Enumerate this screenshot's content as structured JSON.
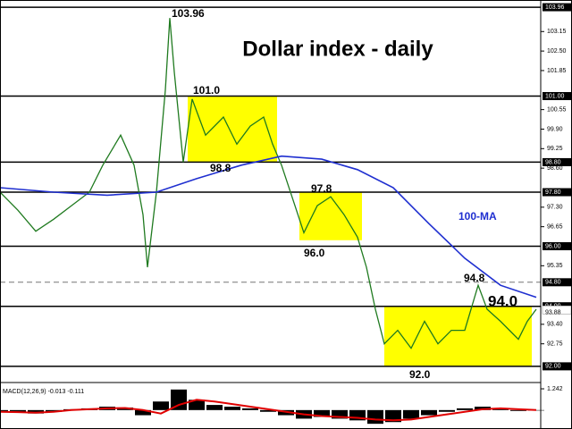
{
  "chart_data": [
    {
      "type": "line",
      "title": "Dollar index - daily",
      "xlim": [
        0,
        121
      ],
      "ylim": [
        91.55,
        104.2
      ],
      "yticks": [
        {
          "value": 103.15,
          "label": "103.15"
        },
        {
          "value": 102.5,
          "label": "102.50"
        },
        {
          "value": 101.85,
          "label": "101.85"
        },
        {
          "value": 100.55,
          "label": "100.55"
        },
        {
          "value": 99.9,
          "label": "99.90"
        },
        {
          "value": 99.25,
          "label": "99.25"
        },
        {
          "value": 98.6,
          "label": "98.60"
        },
        {
          "value": 97.3,
          "label": "97.30"
        },
        {
          "value": 96.65,
          "label": "96.65"
        },
        {
          "value": 95.35,
          "label": "95.35"
        },
        {
          "value": 93.4,
          "label": "93.40"
        },
        {
          "value": 92.75,
          "label": "92.75"
        }
      ],
      "levels": [
        {
          "value": 103.96,
          "label": "103.96"
        },
        {
          "value": 101.0,
          "label": "101.00"
        },
        {
          "value": 98.8,
          "label": "98.80"
        },
        {
          "value": 97.8,
          "label": "97.80"
        },
        {
          "value": 96.0,
          "label": "96.00"
        },
        {
          "value": 94.8,
          "label": "94.80",
          "dashed": true
        },
        {
          "value": 94.0,
          "label": "94.00"
        },
        {
          "value": 92.0,
          "label": "92.00"
        }
      ],
      "last_price": {
        "value": 93.88,
        "label": "93.88"
      },
      "zones": [
        {
          "x": [
            42,
            62
          ],
          "y": [
            98.8,
            101.0
          ]
        },
        {
          "x": [
            67,
            81
          ],
          "y": [
            96.2,
            97.8
          ]
        },
        {
          "x": [
            86,
            119
          ],
          "y": [
            92.0,
            94.0
          ]
        }
      ],
      "zone_color": "#ffff00",
      "series": [
        {
          "color": "#1f7a1f",
          "x": [
            0,
            4,
            8,
            12,
            16,
            20,
            23,
            27,
            30,
            32,
            33,
            35,
            37,
            38,
            39,
            41,
            43,
            46,
            50,
            53,
            56,
            59,
            61,
            63,
            66,
            68,
            71,
            74,
            77,
            80,
            82,
            84,
            86,
            89,
            92,
            95,
            98,
            101,
            104,
            107,
            109,
            112,
            116,
            118,
            120
          ],
          "values": [
            97.8,
            97.2,
            96.5,
            96.9,
            97.35,
            97.8,
            98.7,
            99.7,
            98.7,
            97.05,
            95.3,
            97.8,
            101.2,
            103.6,
            101.8,
            98.8,
            100.9,
            99.7,
            100.3,
            99.4,
            100.0,
            100.3,
            99.4,
            98.7,
            97.35,
            96.45,
            97.35,
            97.65,
            97.05,
            96.3,
            95.3,
            93.9,
            92.75,
            93.2,
            92.6,
            93.5,
            92.75,
            93.2,
            93.2,
            94.7,
            93.9,
            93.5,
            92.9,
            93.5,
            93.9
          ]
        },
        {
          "name": "100-MA",
          "color": "#1f2fd0",
          "x": [
            0,
            12,
            24,
            35,
            44,
            54,
            63,
            72,
            80,
            88,
            96,
            104,
            112,
            120
          ],
          "values": [
            97.95,
            97.8,
            97.7,
            97.8,
            98.25,
            98.7,
            99.0,
            98.9,
            98.55,
            97.95,
            96.75,
            95.6,
            94.7,
            94.3
          ]
        }
      ],
      "annotations": [
        "103.96",
        "101.0",
        "98.8",
        "97.8",
        "96.0",
        "94.8",
        "94.0",
        "92.0"
      ]
    },
    {
      "type": "macd",
      "title": "MACD(12,26,9) -0.013 -0.111",
      "xlim": [
        0,
        121
      ],
      "ylim": [
        -1.0,
        1.4
      ],
      "yticks": [
        1.242
      ],
      "x": [
        0,
        4,
        8,
        12,
        16,
        20,
        24,
        28,
        32,
        36,
        40,
        44,
        48,
        52,
        56,
        60,
        64,
        68,
        72,
        76,
        80,
        84,
        88,
        92,
        96,
        100,
        104,
        108,
        112,
        116,
        120
      ],
      "series": [
        {
          "type": "bar",
          "color": "#000000",
          "values": [
            -0.1,
            -0.15,
            -0.2,
            -0.1,
            0.05,
            0.1,
            0.2,
            0.15,
            -0.3,
            0.5,
            1.2,
            0.6,
            0.3,
            0.2,
            0.1,
            -0.1,
            -0.3,
            -0.5,
            -0.4,
            -0.5,
            -0.6,
            -0.8,
            -0.7,
            -0.5,
            -0.3,
            -0.1,
            0.1,
            0.2,
            0.1,
            -0.05,
            0.0
          ]
        },
        {
          "type": "line",
          "color": "#e00000",
          "values": [
            -0.1,
            -0.12,
            -0.15,
            -0.1,
            0,
            0.05,
            0.1,
            0.12,
            0,
            -0.2,
            0.3,
            0.6,
            0.5,
            0.35,
            0.2,
            0.05,
            -0.1,
            -0.25,
            -0.35,
            -0.4,
            -0.45,
            -0.55,
            -0.6,
            -0.55,
            -0.4,
            -0.25,
            -0.1,
            0.05,
            0.1,
            0.05,
            0.0
          ]
        }
      ]
    }
  ]
}
